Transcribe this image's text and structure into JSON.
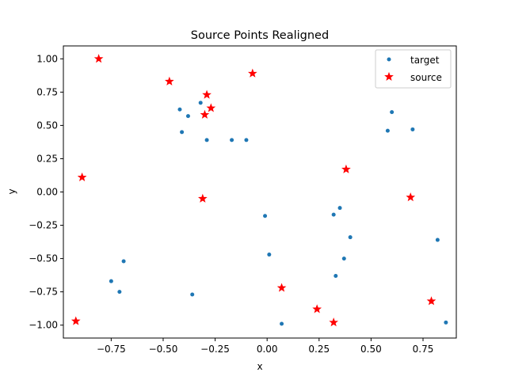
{
  "chart_data": {
    "type": "scatter",
    "title": "Source Points Realigned",
    "xlabel": "x",
    "ylabel": "y",
    "xlim": [
      -0.98,
      0.91
    ],
    "ylim": [
      -1.097,
      1.097
    ],
    "xticks": [
      -0.75,
      -0.5,
      -0.25,
      0.0,
      0.25,
      0.5,
      0.75
    ],
    "xtick_labels": [
      "−0.75",
      "−0.50",
      "−0.25",
      "0.00",
      "0.25",
      "0.50",
      "0.75"
    ],
    "yticks": [
      -1.0,
      -0.75,
      -0.5,
      -0.25,
      0.0,
      0.25,
      0.5,
      0.75,
      1.0
    ],
    "ytick_labels": [
      "−1.00",
      "−0.75",
      "−0.50",
      "−0.25",
      "0.00",
      "0.25",
      "0.50",
      "0.75",
      "1.00"
    ],
    "grid": false,
    "legend_position": "top-right",
    "series": [
      {
        "name": "target",
        "marker": "dot",
        "color": "#1f77b4",
        "points": [
          [
            -0.42,
            0.62
          ],
          [
            -0.32,
            0.67
          ],
          [
            -0.38,
            0.57
          ],
          [
            -0.41,
            0.45
          ],
          [
            -0.29,
            0.39
          ],
          [
            -0.17,
            0.39
          ],
          [
            -0.1,
            0.39
          ],
          [
            0.6,
            0.6
          ],
          [
            0.58,
            0.46
          ],
          [
            0.7,
            0.47
          ],
          [
            -0.01,
            -0.18
          ],
          [
            0.32,
            -0.17
          ],
          [
            0.35,
            -0.12
          ],
          [
            0.4,
            -0.34
          ],
          [
            0.82,
            -0.36
          ],
          [
            0.01,
            -0.47
          ],
          [
            -0.69,
            -0.52
          ],
          [
            0.37,
            -0.5
          ],
          [
            0.33,
            -0.63
          ],
          [
            -0.75,
            -0.67
          ],
          [
            -0.71,
            -0.75
          ],
          [
            -0.36,
            -0.77
          ],
          [
            0.07,
            -0.99
          ],
          [
            0.86,
            -0.98
          ]
        ]
      },
      {
        "name": "source",
        "marker": "star",
        "color": "#ff0000",
        "points": [
          [
            -0.81,
            1.0
          ],
          [
            -0.47,
            0.83
          ],
          [
            -0.07,
            0.89
          ],
          [
            -0.29,
            0.73
          ],
          [
            -0.27,
            0.63
          ],
          [
            -0.3,
            0.58
          ],
          [
            -0.89,
            0.11
          ],
          [
            0.38,
            0.17
          ],
          [
            -0.31,
            -0.05
          ],
          [
            0.69,
            -0.04
          ],
          [
            0.07,
            -0.72
          ],
          [
            0.79,
            -0.82
          ],
          [
            0.24,
            -0.88
          ],
          [
            0.32,
            -0.98
          ],
          [
            -0.92,
            -0.97
          ]
        ]
      }
    ]
  }
}
